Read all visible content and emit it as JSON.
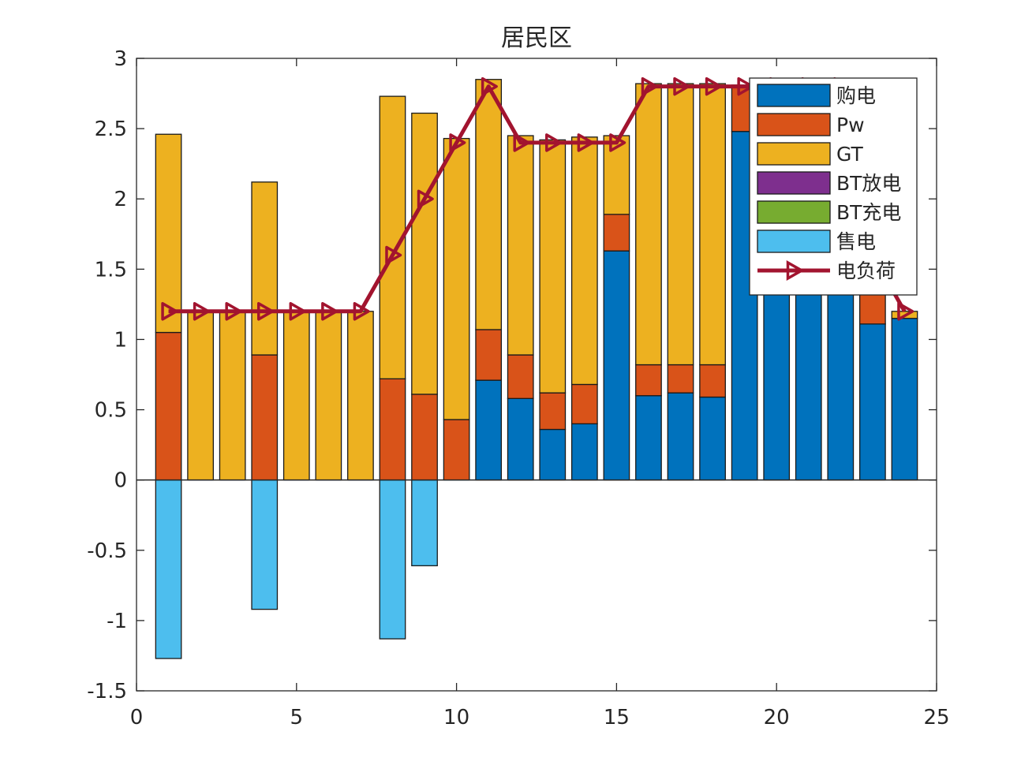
{
  "chart_data": {
    "type": "bar",
    "stacked": true,
    "title": "居民区",
    "xlabel": "",
    "ylabel": "",
    "xlim": [
      0,
      25
    ],
    "ylim": [
      -1.5,
      3
    ],
    "xticks": [
      0,
      5,
      10,
      15,
      20,
      25
    ],
    "xtick_labels": [
      "0",
      "5",
      "10",
      "15",
      "20",
      "25"
    ],
    "yticks": [
      -1.5,
      -1,
      -0.5,
      0,
      0.5,
      1,
      1.5,
      2,
      2.5,
      3
    ],
    "ytick_labels": [
      "-1.5",
      "-1",
      "-0.5",
      "0",
      "0.5",
      "1",
      "1.5",
      "2",
      "2.5",
      "3"
    ],
    "legend_position": "top-right",
    "x": [
      1,
      2,
      3,
      4,
      5,
      6,
      7,
      8,
      9,
      10,
      11,
      12,
      13,
      14,
      15,
      16,
      17,
      18,
      19,
      20,
      21,
      22,
      23,
      24
    ],
    "series": [
      {
        "name": "购电",
        "color": "#0072bd",
        "values": [
          0,
          0,
          0,
          0,
          0,
          0,
          0,
          0,
          0,
          0,
          0.71,
          0.58,
          0.36,
          0.4,
          1.63,
          0.6,
          0.62,
          0.59,
          2.48,
          2.8,
          2.8,
          2.8,
          1.11,
          1.15
        ]
      },
      {
        "name": "Pw",
        "color": "#d95319",
        "values": [
          1.05,
          0,
          0,
          0.89,
          0,
          0,
          0,
          0.72,
          0.61,
          0.43,
          0.36,
          0.31,
          0.26,
          0.28,
          0.26,
          0.22,
          0.2,
          0.23,
          0.33,
          0,
          0,
          0,
          0.33,
          0
        ]
      },
      {
        "name": "GT",
        "color": "#edb120",
        "values": [
          1.41,
          1.2,
          1.2,
          1.23,
          1.2,
          1.2,
          1.2,
          2.01,
          2.0,
          2.0,
          1.78,
          1.56,
          1.8,
          1.76,
          0.56,
          2.0,
          2.0,
          2.0,
          0,
          0,
          0,
          0,
          0,
          0.05
        ]
      },
      {
        "name": "BT放电",
        "color": "#7e2f8e",
        "values": [
          0,
          0,
          0,
          0,
          0,
          0,
          0,
          0,
          0,
          0,
          0,
          0,
          0,
          0,
          0,
          0,
          0,
          0,
          0,
          0,
          0,
          0,
          0,
          0
        ]
      },
      {
        "name": "BT充电",
        "color": "#77ac30",
        "values": [
          0,
          0,
          0,
          0,
          0,
          0,
          0,
          0,
          0,
          0,
          0,
          0,
          0,
          0,
          0,
          0,
          0,
          0,
          0,
          0,
          0,
          0,
          0,
          0
        ]
      },
      {
        "name": "售电",
        "color": "#4dbeee",
        "values": [
          -1.27,
          0,
          0,
          -0.92,
          0,
          0,
          0,
          -1.13,
          -0.61,
          0,
          0,
          0,
          0,
          0,
          0,
          0,
          0,
          0,
          0,
          0,
          0,
          0,
          0,
          0
        ]
      }
    ],
    "line": {
      "name": "电负荷",
      "color": "#a2142f",
      "marker": "triangle-right",
      "values": [
        1.2,
        1.2,
        1.2,
        1.2,
        1.2,
        1.2,
        1.2,
        1.6,
        2.0,
        2.4,
        2.8,
        2.4,
        2.4,
        2.4,
        2.4,
        2.8,
        2.8,
        2.8,
        2.8,
        2.8,
        2.8,
        2.8,
        1.6,
        1.2
      ]
    }
  }
}
